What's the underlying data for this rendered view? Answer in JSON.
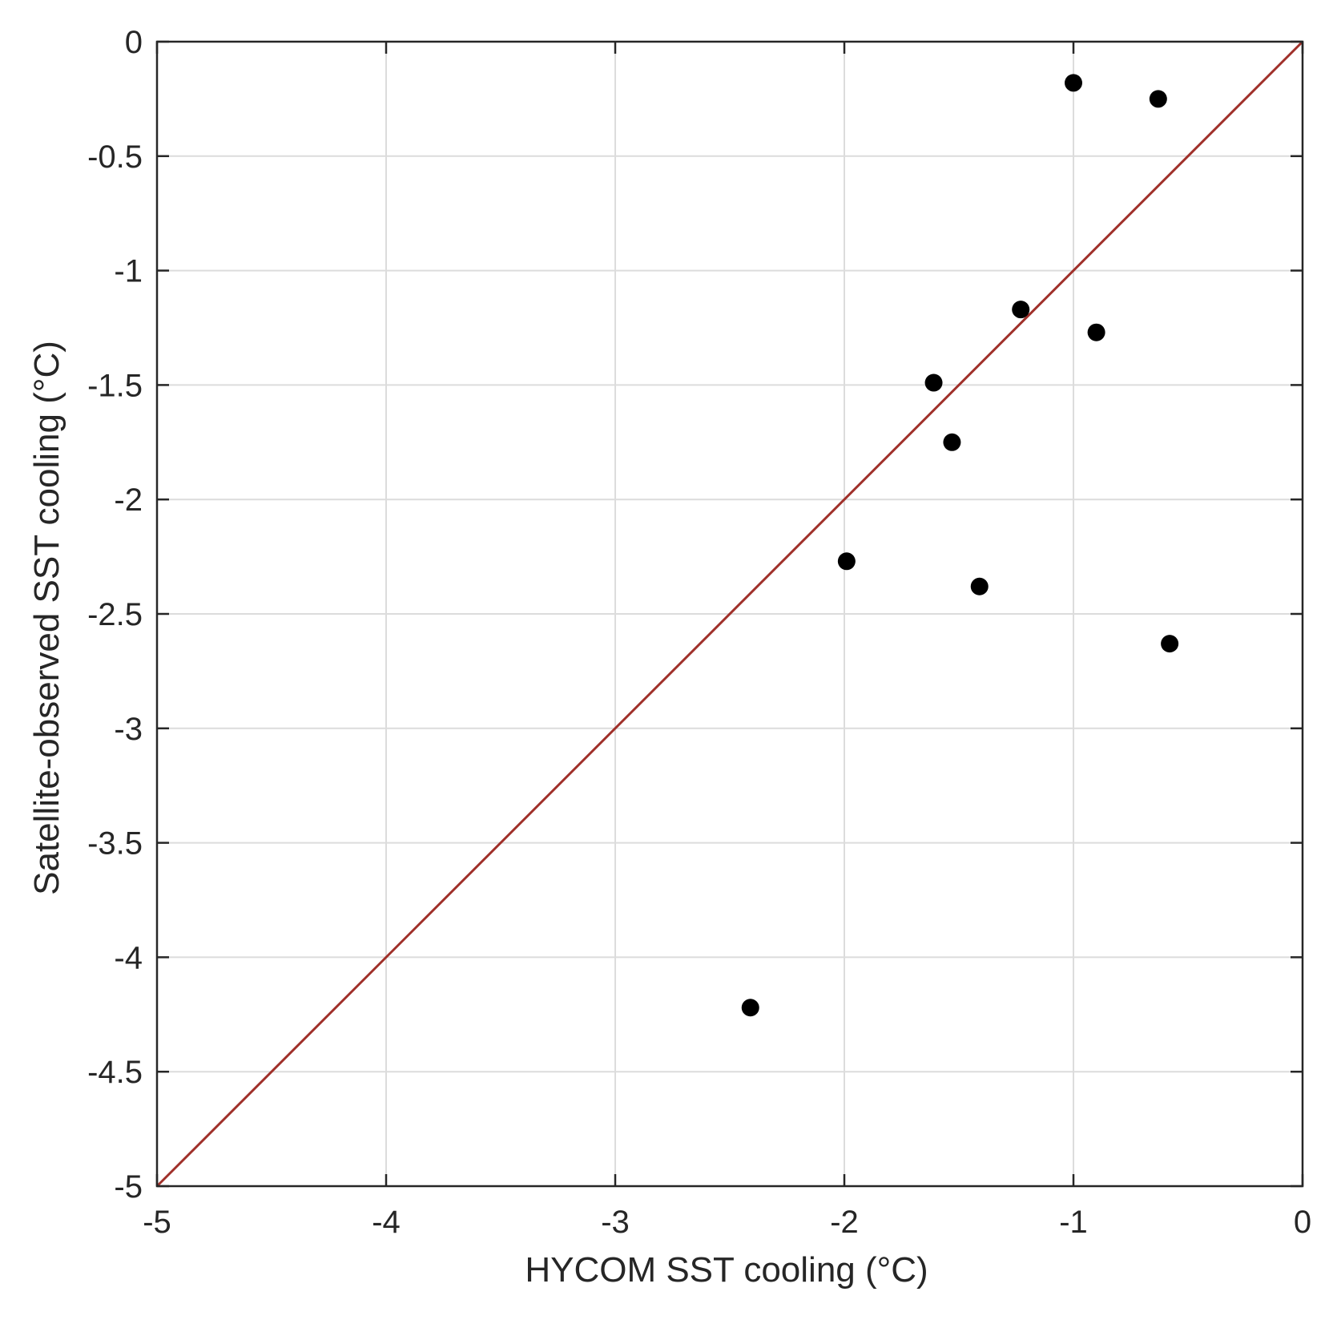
{
  "chart_data": {
    "type": "scatter",
    "title": "",
    "xlabel": "HYCOM SST cooling (°C)",
    "ylabel": "Satellite-observed SST cooling (°C)",
    "xlim": [
      -5,
      0
    ],
    "ylim": [
      -5,
      0
    ],
    "xticks": [
      -5,
      -4,
      -3,
      -2,
      -1,
      0
    ],
    "yticks": [
      -5,
      -4.5,
      -4,
      -3.5,
      -3,
      -2.5,
      -2,
      -1.5,
      -1,
      -0.5,
      0
    ],
    "xtick_labels": [
      "-5",
      "-4",
      "-3",
      "-2",
      "-1",
      "0"
    ],
    "ytick_labels": [
      "-5",
      "-4.5",
      "-4",
      "-3.5",
      "-3",
      "-2.5",
      "-2",
      "-1.5",
      "-1",
      "-0.5",
      "0"
    ],
    "grid": true,
    "series": [
      {
        "marker": "filled-circle",
        "color": "#000000",
        "points": [
          {
            "x": -1.0,
            "y": -0.18
          },
          {
            "x": -0.63,
            "y": -0.25
          },
          {
            "x": -1.23,
            "y": -1.17
          },
          {
            "x": -0.9,
            "y": -1.27
          },
          {
            "x": -1.61,
            "y": -1.49
          },
          {
            "x": -1.53,
            "y": -1.75
          },
          {
            "x": -1.99,
            "y": -2.27
          },
          {
            "x": -1.41,
            "y": -2.38
          },
          {
            "x": -0.58,
            "y": -2.63
          },
          {
            "x": -2.41,
            "y": -4.22
          }
        ]
      }
    ],
    "reference_line": {
      "kind": "identity",
      "from": [
        -5,
        -5
      ],
      "to": [
        0,
        0
      ],
      "color": "#a0302a"
    },
    "colors": {
      "axes": "#262626",
      "grid": "#dcdcdc",
      "background": "#ffffff"
    }
  }
}
